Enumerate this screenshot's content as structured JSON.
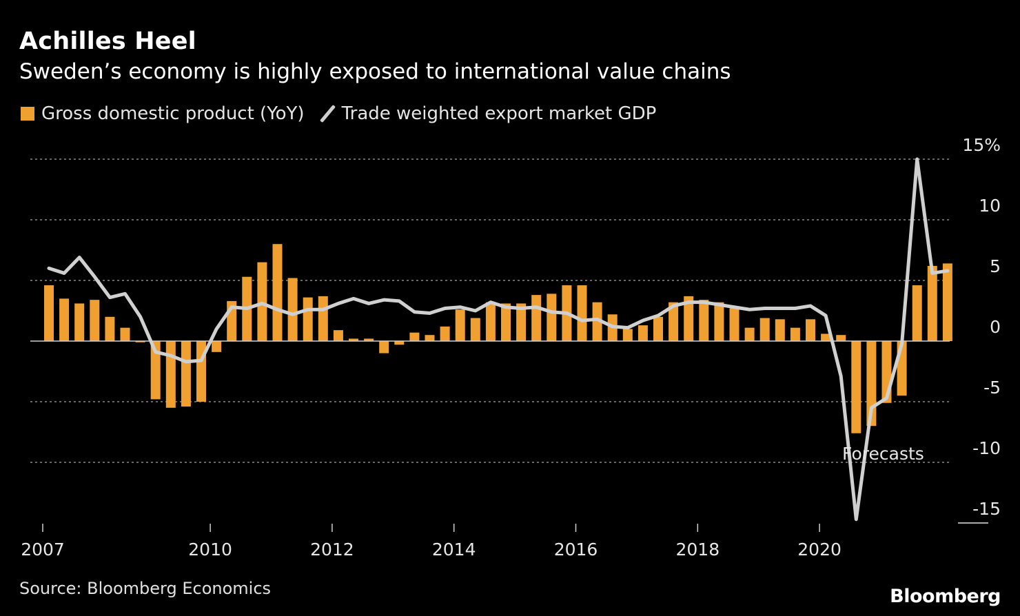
{
  "chart_data": {
    "type": "bar+line",
    "title": "Achilles Heel",
    "subtitle": "Sweden’s economy is highly exposed to international value chains",
    "legend": [
      "Gross domestic product (YoY)",
      "Trade weighted export market GDP"
    ],
    "source": "Source: Bloomberg Economics",
    "brand": "Bloomberg",
    "annotation": "Forecasts",
    "ylim": [
      -15,
      15
    ],
    "y_ticks": [
      15,
      10,
      5,
      0,
      -5,
      -10,
      -15
    ],
    "y_tick_labels": [
      "15%",
      "10",
      "5",
      "0",
      "-5",
      "-10",
      "-15"
    ],
    "x_tick_labels": [
      "2007",
      "2010",
      "2012",
      "2014",
      "2016",
      "2018",
      "2020"
    ],
    "x_tick_index": [
      0,
      11,
      19,
      27,
      35,
      43,
      51
    ],
    "colors": {
      "bar": "#f0a030",
      "line": "#d0d0d0",
      "grid": "#8a8a8a",
      "background": "#000000"
    },
    "series": [
      {
        "name": "Gross domestic product (YoY)",
        "kind": "bar",
        "values": [
          4.6,
          3.5,
          3.1,
          3.4,
          2.0,
          1.1,
          -0.1,
          -4.8,
          -5.5,
          -5.4,
          -5.0,
          -0.9,
          3.3,
          5.3,
          6.5,
          8.0,
          5.2,
          3.6,
          3.7,
          0.9,
          0.2,
          0.2,
          -1.0,
          -0.3,
          0.7,
          0.5,
          1.2,
          2.6,
          1.9,
          3.2,
          3.1,
          3.1,
          3.8,
          3.9,
          4.6,
          4.6,
          3.2,
          2.2,
          1.0,
          1.3,
          2.0,
          3.2,
          3.7,
          3.4,
          3.2,
          2.7,
          1.1,
          1.9,
          1.8,
          1.1,
          1.8,
          0.6,
          0.5,
          -7.6,
          -7.0,
          -5.1,
          -4.5,
          4.6,
          6.2,
          6.4
        ]
      },
      {
        "name": "Trade weighted export market GDP",
        "kind": "line",
        "values": [
          6.0,
          5.6,
          6.9,
          5.3,
          3.6,
          3.9,
          2.0,
          -0.9,
          -1.2,
          -1.7,
          -1.6,
          1.0,
          2.8,
          2.7,
          3.1,
          2.6,
          2.2,
          2.6,
          2.6,
          3.1,
          3.5,
          3.1,
          3.4,
          3.3,
          2.4,
          2.3,
          2.7,
          2.8,
          2.5,
          3.2,
          2.8,
          2.7,
          2.8,
          2.4,
          2.3,
          1.7,
          1.8,
          1.2,
          1.1,
          1.7,
          2.1,
          2.9,
          3.2,
          3.2,
          3.0,
          2.8,
          2.6,
          2.7,
          2.7,
          2.7,
          2.9,
          2.1,
          -2.9,
          -14.7,
          -5.5,
          -4.7,
          -0.2,
          15.0,
          5.6,
          5.8
        ]
      }
    ],
    "forecast_start_index": 53
  }
}
